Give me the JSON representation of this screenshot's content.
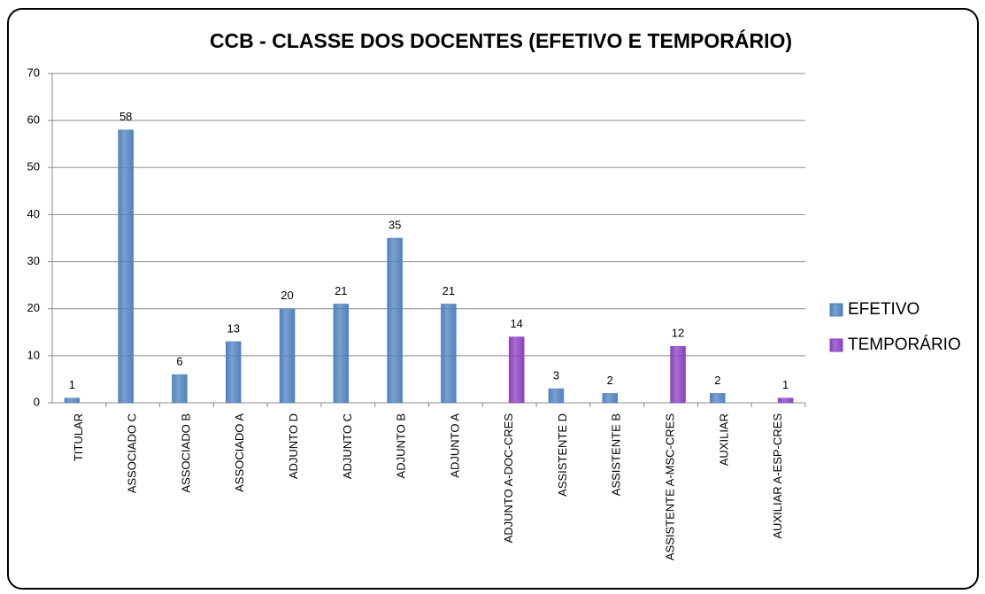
{
  "chart_data": {
    "type": "bar",
    "title": "CCB - CLASSE DOS DOCENTES  (EFETIVO E TEMPORÁRIO)",
    "categories": [
      "TITULAR",
      "ASSOCIADO C",
      "ASSOCIADO B",
      "ASSOCIADO A",
      "ADJUNTO D",
      "ADJUNTO C",
      "ADJUNTO B",
      "ADJUNTO A",
      "ADJUNTO A-DOC-CRES",
      "ASSISTENTE D",
      "ASSISTENTE B",
      "ASSISTENTE A-MSC-CRES",
      "AUXILIAR",
      "AUXILIAR A-ESP-CRES"
    ],
    "series": [
      {
        "name": "EFETIVO",
        "color": "#4f81bd",
        "values": [
          1,
          58,
          6,
          13,
          20,
          21,
          35,
          21,
          null,
          3,
          2,
          null,
          2,
          null
        ]
      },
      {
        "name": "TEMPORÁRIO",
        "color": "#8a3fbf",
        "values": [
          null,
          null,
          null,
          null,
          null,
          null,
          null,
          null,
          14,
          null,
          null,
          12,
          null,
          1
        ]
      }
    ],
    "ylim": [
      0,
      70
    ],
    "yticks": [
      0,
      10,
      20,
      30,
      40,
      50,
      60,
      70
    ],
    "grid": true,
    "legend": "right"
  }
}
